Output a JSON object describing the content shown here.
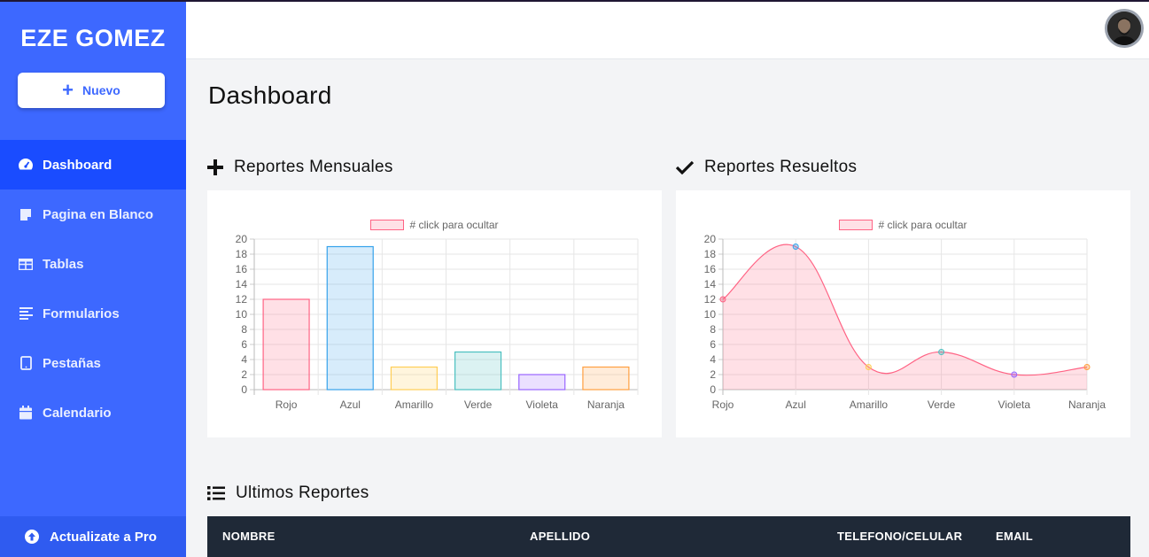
{
  "app": {
    "brand": "EZE GOMEZ"
  },
  "sidebar": {
    "new_button": "Nuevo",
    "items": [
      {
        "label": "Dashboard",
        "icon": "tachometer-icon",
        "active": true
      },
      {
        "label": "Pagina en Blanco",
        "icon": "sticky-note-icon",
        "active": false
      },
      {
        "label": "Tablas",
        "icon": "table-icon",
        "active": false
      },
      {
        "label": "Formularios",
        "icon": "align-left-icon",
        "active": false
      },
      {
        "label": "Pestañas",
        "icon": "tablet-icon",
        "active": false
      },
      {
        "label": "Calendario",
        "icon": "calendar-icon",
        "active": false
      }
    ],
    "upgrade_label": "Actualizate a Pro"
  },
  "header": {
    "avatar": "user-avatar"
  },
  "main": {
    "title": "Dashboard",
    "sections": {
      "monthly": "Reportes Mensuales",
      "resolved": "Reportes Resueltos",
      "latest": "Ultimos Reportes"
    }
  },
  "table": {
    "columns": [
      "NOMBRE",
      "APELLIDO",
      "TELEFONO/CELULAR",
      "EMAIL"
    ]
  },
  "colors": {
    "sidebar": "#3d68ff",
    "sidebar_active": "#1a4cff",
    "table_header": "#1f2937"
  },
  "chart_data": [
    {
      "type": "bar",
      "title": "",
      "legend": [
        "# click para ocultar"
      ],
      "legend_position": "top",
      "categories": [
        "Rojo",
        "Azul",
        "Amarillo",
        "Verde",
        "Violeta",
        "Naranja"
      ],
      "values": [
        12,
        19,
        3,
        5,
        2,
        3
      ],
      "colors": [
        "#ff6384",
        "#36a2eb",
        "#ffce56",
        "#4bc0c0",
        "#9966ff",
        "#ff9f40"
      ],
      "ylim": [
        0,
        20
      ],
      "yticks": [
        0,
        2,
        4,
        6,
        8,
        10,
        12,
        14,
        16,
        18,
        20
      ],
      "grid": true
    },
    {
      "type": "area",
      "title": "",
      "legend": [
        "# click para ocultar"
      ],
      "legend_position": "top",
      "categories": [
        "Rojo",
        "Azul",
        "Amarillo",
        "Verde",
        "Violeta",
        "Naranja"
      ],
      "values": [
        12,
        19,
        3,
        5,
        2,
        3
      ],
      "point_colors": [
        "#ff6384",
        "#36a2eb",
        "#ffce56",
        "#4bc0c0",
        "#9966ff",
        "#ff9f40"
      ],
      "line_color": "#ff6384",
      "ylim": [
        0,
        20
      ],
      "yticks": [
        0,
        2,
        4,
        6,
        8,
        10,
        12,
        14,
        16,
        18,
        20
      ],
      "grid": true
    }
  ]
}
